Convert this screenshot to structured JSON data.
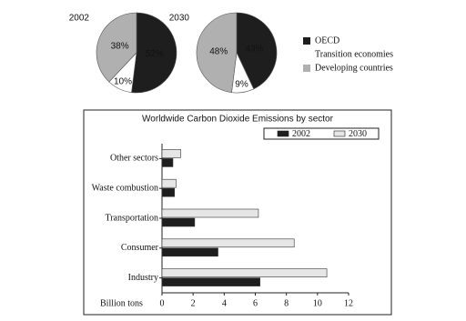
{
  "chart_data": [
    {
      "type": "pie",
      "title": "2002",
      "categories": [
        "OECD",
        "Transition economies",
        "Developing countries"
      ],
      "values": [
        52,
        10,
        38
      ],
      "value_labels": [
        "52%",
        "10%",
        "38%"
      ],
      "colors": [
        "#1e1e1e",
        "#ffffff",
        "#b0b0b0"
      ]
    },
    {
      "type": "pie",
      "title": "2030",
      "categories": [
        "OECD",
        "Transition economies",
        "Developing countries"
      ],
      "values": [
        43,
        9,
        48
      ],
      "value_labels": [
        "43%",
        "9%",
        "48%"
      ],
      "colors": [
        "#1e1e1e",
        "#ffffff",
        "#b0b0b0"
      ]
    },
    {
      "type": "bar",
      "orientation": "horizontal",
      "title": "Worldwide Carbon Dioxide Emissions by sector",
      "categories": [
        "Other sectors",
        "Waste combustion",
        "Transportation",
        "Consumer",
        "Industry"
      ],
      "series": [
        {
          "name": "2002",
          "color": "#1e1e1e",
          "values": [
            0.7,
            0.8,
            2.1,
            3.6,
            6.3
          ]
        },
        {
          "name": "2030",
          "color": "#e6e6e6",
          "values": [
            1.2,
            0.9,
            6.2,
            8.5,
            10.6
          ]
        }
      ],
      "xlabel": "Billion tons",
      "xlim": [
        0,
        12
      ],
      "xticks": [
        0,
        2,
        4,
        6,
        8,
        10,
        12
      ],
      "legend": "top-right"
    }
  ]
}
